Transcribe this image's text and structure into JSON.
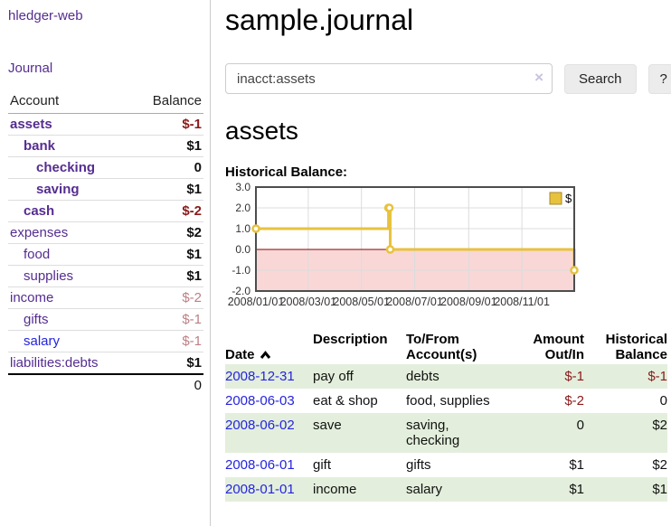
{
  "app": {
    "brand": "hledger-web"
  },
  "sidebar": {
    "journal_link": "Journal",
    "accounts": {
      "headers": {
        "account": "Account",
        "balance": "Balance"
      },
      "rows": [
        {
          "name": "assets",
          "indent": 1,
          "bold": true,
          "link_color": "purple",
          "balance": "$-1",
          "balance_class": "negstrong"
        },
        {
          "name": "bank",
          "indent": 2,
          "bold": true,
          "link_color": "purple",
          "balance": "$1",
          "balance_class": ""
        },
        {
          "name": "checking",
          "indent": 3,
          "bold": true,
          "link_color": "purple",
          "balance": "0",
          "balance_class": ""
        },
        {
          "name": "saving",
          "indent": 3,
          "bold": true,
          "link_color": "purple",
          "balance": "$1",
          "balance_class": ""
        },
        {
          "name": "cash",
          "indent": 2,
          "bold": true,
          "link_color": "purple",
          "balance": "$-2",
          "balance_class": "negstrong"
        },
        {
          "name": "expenses",
          "indent": 1,
          "bold": false,
          "link_color": "purple",
          "balance": "$2",
          "balance_class": ""
        },
        {
          "name": "food",
          "indent": 2,
          "bold": false,
          "link_color": "purple",
          "balance": "$1",
          "balance_class": ""
        },
        {
          "name": "supplies",
          "indent": 2,
          "bold": false,
          "link_color": "purple",
          "balance": "$1",
          "balance_class": ""
        },
        {
          "name": "income",
          "indent": 1,
          "bold": false,
          "link_color": "purple",
          "balance": "$-2",
          "balance_class": "negsoft"
        },
        {
          "name": "gifts",
          "indent": 2,
          "bold": false,
          "link_color": "purple",
          "balance": "$-1",
          "balance_class": "negsoft"
        },
        {
          "name": "salary",
          "indent": 2,
          "bold": false,
          "link_color": "blue",
          "balance": "$-1",
          "balance_class": "negsoft"
        },
        {
          "name": "liabilities:debts",
          "indent": 1,
          "bold": false,
          "link_color": "purple",
          "balance": "$1",
          "balance_class": ""
        }
      ],
      "total": "0"
    }
  },
  "main": {
    "title": "sample.journal",
    "search": {
      "value": "inacct:assets",
      "clear_icon": "×",
      "button_label": "Search",
      "help_label": "?"
    },
    "account_heading": "assets",
    "chart_label": "Historical Balance:"
  },
  "chart_data": {
    "type": "line",
    "title": "Historical Balance:",
    "legend": "$",
    "legend_position": "top-right",
    "grid": true,
    "step": true,
    "xlim": [
      "2008-01-01",
      "2008-12-31"
    ],
    "ylim": [
      -2,
      3
    ],
    "x_ticks": [
      "2008/01/01",
      "2008/03/01",
      "2008/05/01",
      "2008/07/01",
      "2008/09/01",
      "2008/11/01"
    ],
    "y_ticks": [
      3.0,
      2.0,
      1.0,
      0.0,
      -1.0,
      -2.0
    ],
    "series": [
      {
        "name": "$",
        "points": [
          {
            "x": "2008-01-01",
            "y": 1
          },
          {
            "x": "2008-06-01",
            "y": 2
          },
          {
            "x": "2008-06-02",
            "y": 2
          },
          {
            "x": "2008-06-03",
            "y": 0
          },
          {
            "x": "2008-12-31",
            "y": -1
          }
        ]
      }
    ],
    "colors": {
      "line": "#e7c23d",
      "marker_fill": "#ffffff",
      "legend_border": "#a8882a",
      "negative_region": "#f9d7d7",
      "zero_line": "#8b0000",
      "grid": "#dcdcdc",
      "border": "#4d4d4d",
      "tick_text": "#333333"
    }
  },
  "register": {
    "headers": {
      "date": "Date",
      "description": "Description",
      "tofrom": "To/From\nAccount(s)",
      "amount": "Amount\nOut/In",
      "historical": "Historical\nBalance"
    },
    "rows": [
      {
        "date": "2008-12-31",
        "description": "pay off",
        "tofrom": "debts",
        "amount": "$-1",
        "amount_neg": true,
        "historical": "$-1",
        "historical_neg": true
      },
      {
        "date": "2008-06-03",
        "description": "eat & shop",
        "tofrom": "food, supplies",
        "amount": "$-2",
        "amount_neg": true,
        "historical": "0",
        "historical_neg": false
      },
      {
        "date": "2008-06-02",
        "description": "save",
        "tofrom": "saving,\nchecking",
        "amount": "0",
        "amount_neg": false,
        "historical": "$2",
        "historical_neg": false
      },
      {
        "date": "2008-06-01",
        "description": "gift",
        "tofrom": "gifts",
        "amount": "$1",
        "amount_neg": false,
        "historical": "$2",
        "historical_neg": false
      },
      {
        "date": "2008-01-01",
        "description": "income",
        "tofrom": "salary",
        "amount": "$1",
        "amount_neg": false,
        "historical": "$1",
        "historical_neg": false
      }
    ]
  }
}
